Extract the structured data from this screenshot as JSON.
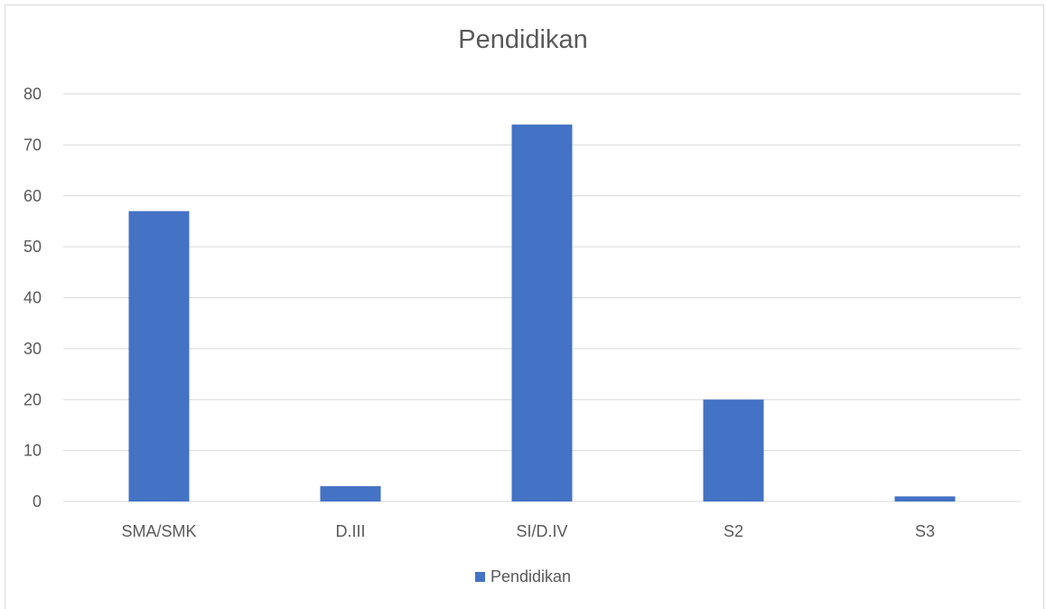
{
  "chart_data": {
    "type": "bar",
    "title": "Pendidikan",
    "categories": [
      "SMA/SMK",
      "D.III",
      "SI/D.IV",
      "S2",
      "S3"
    ],
    "series": [
      {
        "name": "Pendidikan",
        "values": [
          57,
          3,
          74,
          20,
          1
        ],
        "color": "#4472c4"
      }
    ],
    "xlabel": "",
    "ylabel": "",
    "ylim": [
      0,
      80
    ],
    "yticks": [
      "0",
      "10",
      "20",
      "30",
      "40",
      "50",
      "60",
      "70",
      "80"
    ],
    "grid": true,
    "gridColor": "#d9d9d9",
    "legend": "bottom"
  }
}
